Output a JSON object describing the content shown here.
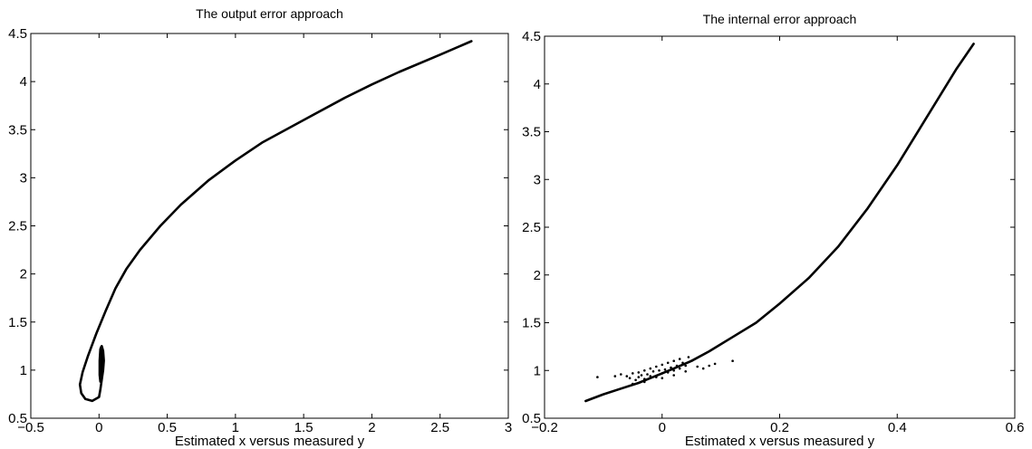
{
  "chart_data": [
    {
      "type": "line",
      "title": "The output error approach",
      "xlabel": "Estimated x versus measured y",
      "ylabel": "",
      "xlim": [
        -0.5,
        3
      ],
      "ylim": [
        0.5,
        4.5
      ],
      "xticks": [
        -0.5,
        0,
        0.5,
        1,
        1.5,
        2,
        2.5,
        3
      ],
      "xtick_labels": [
        "−0.5",
        "0",
        "0.5",
        "1",
        "1.5",
        "2",
        "2.5",
        "3"
      ],
      "yticks": [
        0.5,
        1,
        1.5,
        2,
        2.5,
        3,
        3.5,
        4,
        4.5
      ],
      "ytick_labels": [
        "0.5",
        "1",
        "1.5",
        "2",
        "2.5",
        "3",
        "3.5",
        "4",
        "4.5"
      ],
      "grid": false,
      "series": [
        {
          "style": "line",
          "x": [
            2.73,
            2.5,
            2.2,
            2.0,
            1.8,
            1.5,
            1.2,
            1.0,
            0.8,
            0.6,
            0.45,
            0.3,
            0.2,
            0.12,
            0.05,
            -0.02,
            -0.08,
            -0.12,
            -0.14,
            -0.13,
            -0.1,
            -0.05,
            0.0,
            0.01,
            0.02,
            0.03,
            0.035,
            0.03,
            0.02,
            0.01,
            0.005,
            0.005,
            0.01,
            0.015,
            0.02,
            0.02,
            0.015,
            0.01,
            0.008,
            0.01,
            0.015
          ],
          "y": [
            4.42,
            4.28,
            4.1,
            3.97,
            3.83,
            3.6,
            3.37,
            3.18,
            2.97,
            2.72,
            2.5,
            2.25,
            2.05,
            1.85,
            1.62,
            1.38,
            1.15,
            0.98,
            0.85,
            0.76,
            0.7,
            0.68,
            0.72,
            0.8,
            0.9,
            1.0,
            1.1,
            1.2,
            1.25,
            1.22,
            1.1,
            0.95,
            0.88,
            0.9,
            1.0,
            1.15,
            1.24,
            1.2,
            1.05,
            0.9,
            0.88
          ]
        }
      ]
    },
    {
      "type": "scatter",
      "title": "The internal error approach",
      "xlabel": "Estimated x versus measured y",
      "ylabel": "",
      "xlim": [
        -0.2,
        0.6
      ],
      "ylim": [
        0.5,
        4.5
      ],
      "xticks": [
        -0.2,
        0,
        0.2,
        0.4,
        0.6
      ],
      "xtick_labels": [
        "−0.2",
        "0",
        "0.2",
        "0.4",
        "0.6"
      ],
      "yticks": [
        0.5,
        1,
        1.5,
        2,
        2.5,
        3,
        3.5,
        4,
        4.5
      ],
      "ytick_labels": [
        "0.5",
        "1",
        "1.5",
        "2",
        "2.5",
        "3",
        "3.5",
        "4",
        "4.5"
      ],
      "grid": false,
      "series": [
        {
          "style": "line",
          "x": [
            -0.13,
            -0.1,
            -0.07,
            -0.04,
            -0.02,
            0.0,
            0.02,
            0.05,
            0.08,
            0.12,
            0.16,
            0.2,
            0.25,
            0.3,
            0.35,
            0.4,
            0.45,
            0.5,
            0.53
          ],
          "y": [
            0.68,
            0.75,
            0.81,
            0.87,
            0.92,
            0.97,
            1.02,
            1.1,
            1.2,
            1.35,
            1.5,
            1.7,
            1.97,
            2.3,
            2.7,
            3.15,
            3.65,
            4.15,
            4.42
          ]
        },
        {
          "style": "points",
          "x": [
            -0.11,
            -0.08,
            -0.07,
            -0.06,
            -0.055,
            -0.05,
            -0.045,
            -0.04,
            -0.04,
            -0.035,
            -0.03,
            -0.03,
            -0.025,
            -0.02,
            -0.02,
            -0.015,
            -0.01,
            -0.01,
            -0.005,
            0.0,
            0.0,
            0.005,
            0.01,
            0.01,
            0.015,
            0.02,
            0.02,
            0.025,
            0.03,
            0.03,
            0.035,
            0.04,
            0.045,
            0.05,
            0.06,
            0.07,
            0.08,
            0.09,
            0.12,
            -0.05,
            -0.03,
            0.0,
            0.02,
            0.04
          ],
          "y": [
            0.93,
            0.94,
            0.96,
            0.94,
            0.92,
            0.97,
            0.9,
            0.93,
            0.98,
            0.95,
            0.91,
            1.0,
            0.96,
            0.94,
            1.02,
            0.99,
            0.93,
            1.04,
            1.0,
            0.97,
            1.06,
            1.01,
            0.98,
            1.08,
            1.03,
            1.0,
            1.1,
            1.05,
            1.02,
            1.12,
            1.08,
            1.05,
            1.14,
            1.1,
            1.04,
            1.02,
            1.05,
            1.07,
            1.1,
            0.86,
            0.88,
            0.92,
            0.95,
            0.99
          ]
        }
      ]
    }
  ]
}
